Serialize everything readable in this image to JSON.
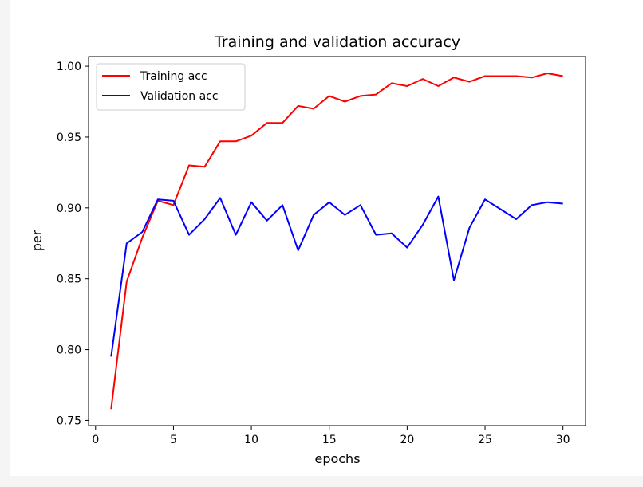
{
  "chart_data": {
    "type": "line",
    "title": "Training and validation accuracy",
    "xlabel": "epochs",
    "ylabel": "per",
    "xlim": [
      -0.45,
      31.45
    ],
    "ylim": [
      0.7463,
      1.0068
    ],
    "xticks": [
      0,
      5,
      10,
      15,
      20,
      25,
      30
    ],
    "yticks": [
      0.75,
      0.8,
      0.85,
      0.9,
      0.95,
      1.0
    ],
    "xtick_labels": [
      "0",
      "5",
      "10",
      "15",
      "20",
      "25",
      "30"
    ],
    "ytick_labels": [
      "0.75",
      "0.80",
      "0.85",
      "0.90",
      "0.95",
      "1.00"
    ],
    "grid": false,
    "legend_position": "upper left",
    "x": [
      1,
      2,
      3,
      4,
      5,
      6,
      7,
      8,
      9,
      10,
      11,
      12,
      13,
      14,
      15,
      16,
      17,
      18,
      19,
      20,
      21,
      22,
      23,
      24,
      25,
      26,
      27,
      28,
      29,
      30
    ],
    "series": [
      {
        "name": "Training acc",
        "color": "#ff0000",
        "values": [
          0.758,
          0.848,
          0.879,
          0.905,
          0.902,
          0.93,
          0.929,
          0.947,
          0.947,
          0.951,
          0.96,
          0.96,
          0.972,
          0.97,
          0.979,
          0.975,
          0.979,
          0.98,
          0.988,
          0.986,
          0.991,
          0.986,
          0.992,
          0.989,
          0.993,
          0.993,
          0.993,
          0.992,
          0.995,
          0.993
        ]
      },
      {
        "name": "Validation acc",
        "color": "#0000ff",
        "values": [
          0.795,
          0.875,
          0.883,
          0.906,
          0.905,
          0.881,
          0.892,
          0.907,
          0.881,
          0.904,
          0.891,
          0.902,
          0.87,
          0.895,
          0.904,
          0.895,
          0.902,
          0.881,
          0.882,
          0.872,
          0.888,
          0.908,
          0.849,
          0.886,
          0.906,
          0.899,
          0.892,
          0.902,
          0.904,
          0.903
        ]
      }
    ]
  }
}
